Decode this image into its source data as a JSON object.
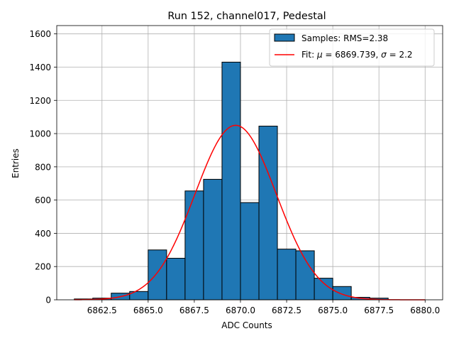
{
  "chart_data": {
    "type": "bar",
    "title": "Run 152, channel017, Pedestal",
    "xlabel": "ADC Counts",
    "ylabel": "Entries",
    "xlim": [
      6860.05,
      6880.95
    ],
    "ylim": [
      0,
      1650
    ],
    "grid": true,
    "x_ticks": [
      6862.5,
      6865.0,
      6867.5,
      6870.0,
      6872.5,
      6875.0,
      6877.5,
      6880.0
    ],
    "x_tick_labels": [
      "6862.5",
      "6865.0",
      "6867.5",
      "6870.0",
      "6872.5",
      "6875.0",
      "6877.5",
      "6880.0"
    ],
    "y_ticks": [
      0,
      200,
      400,
      600,
      800,
      1000,
      1200,
      1400,
      1600
    ],
    "y_tick_labels": [
      "0",
      "200",
      "400",
      "600",
      "800",
      "1000",
      "1200",
      "1400",
      "1600"
    ],
    "bins": [
      {
        "start": 6861,
        "end": 6862,
        "value": 5
      },
      {
        "start": 6862,
        "end": 6863,
        "value": 10
      },
      {
        "start": 6863,
        "end": 6864,
        "value": 40
      },
      {
        "start": 6864,
        "end": 6865,
        "value": 50
      },
      {
        "start": 6865,
        "end": 6866,
        "value": 300
      },
      {
        "start": 6866,
        "end": 6867,
        "value": 250
      },
      {
        "start": 6867,
        "end": 6868,
        "value": 655
      },
      {
        "start": 6868,
        "end": 6869,
        "value": 725
      },
      {
        "start": 6869,
        "end": 6870,
        "value": 1430
      },
      {
        "start": 6870,
        "end": 6871,
        "value": 585
      },
      {
        "start": 6871,
        "end": 6872,
        "value": 1045
      },
      {
        "start": 6872,
        "end": 6873,
        "value": 305
      },
      {
        "start": 6873,
        "end": 6874,
        "value": 295
      },
      {
        "start": 6874,
        "end": 6875,
        "value": 130
      },
      {
        "start": 6875,
        "end": 6876,
        "value": 80
      },
      {
        "start": 6876,
        "end": 6877,
        "value": 15
      },
      {
        "start": 6877,
        "end": 6878,
        "value": 10
      },
      {
        "start": 6878,
        "end": 6879,
        "value": 0
      },
      {
        "start": 6879,
        "end": 6880,
        "value": 0
      }
    ],
    "fit": {
      "mu": 6869.739,
      "sigma": 2.2,
      "amplitude": 1050,
      "x_range": [
        6861,
        6880
      ],
      "color": "#ff0000"
    },
    "bar_color": "#1f77b4",
    "legend": {
      "position": "top-right",
      "samples_label": "Samples: RMS=2.38",
      "fit_label_prefix": "Fit: ",
      "mu_symbol": "μ",
      "mu_text": " = 6869.739, ",
      "sigma_symbol": "σ",
      "sigma_text": " = 2.2"
    }
  }
}
